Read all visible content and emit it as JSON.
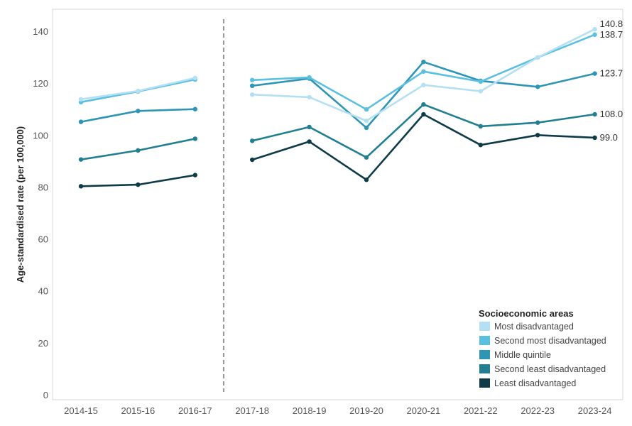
{
  "chart_data": {
    "type": "line",
    "ylabel": "Age-standardised rate (per 100,000)",
    "xlabel": "",
    "ylim": [
      0,
      145
    ],
    "yticks": [
      0,
      20,
      40,
      60,
      80,
      100,
      120,
      140
    ],
    "categories": [
      "2014-15",
      "2015-16",
      "2016-17",
      "2017-18",
      "2018-19",
      "2019-20",
      "2020-21",
      "2021-22",
      "2022-23",
      "2023-24"
    ],
    "break_after": "2016-17",
    "grid": false,
    "legend": {
      "title": "Socioeconomic areas",
      "position": "bottom-right"
    },
    "series": [
      {
        "name": "Most disadvantaged",
        "color": "#b4e0f3",
        "values": [
          113.8,
          117.0,
          122.0,
          115.6,
          114.6,
          105.5,
          119.3,
          116.9,
          129.9,
          140.8
        ],
        "end_label": "140.8"
      },
      {
        "name": "Second most disadvantaged",
        "color": "#5bc0e0",
        "values": [
          112.7,
          116.8,
          121.4,
          121.2,
          122.2,
          109.9,
          124.5,
          120.6,
          129.9,
          138.7
        ],
        "end_label": "138.7"
      },
      {
        "name": "Middle quintile",
        "color": "#2e95b5",
        "values": [
          105.1,
          109.3,
          110.0,
          119.0,
          121.8,
          102.8,
          128.2,
          120.9,
          118.6,
          123.7
        ],
        "end_label": "123.7"
      },
      {
        "name": "Second least disadvantaged",
        "color": "#217f91",
        "values": [
          90.6,
          94.1,
          98.6,
          97.8,
          103.1,
          91.4,
          111.8,
          103.4,
          104.8,
          108.0
        ],
        "end_label": "108.0"
      },
      {
        "name": "Least disadvantaged",
        "color": "#0f3a48",
        "values": [
          80.3,
          80.9,
          84.6,
          90.5,
          97.5,
          82.8,
          108.0,
          96.2,
          100.0,
          99.0
        ],
        "end_label": "99.0"
      }
    ]
  }
}
